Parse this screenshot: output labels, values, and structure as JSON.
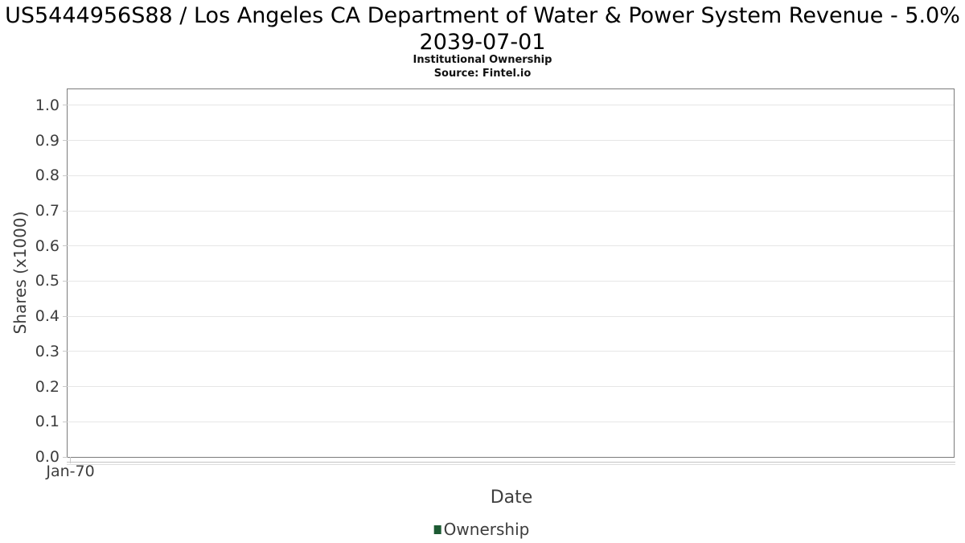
{
  "chart_data": {
    "type": "line",
    "title": "US5444956S88 / Los Angeles CA Department of Water & Power System Revenue - 5.0% 2039-07-01",
    "subtitle": "Institutional Ownership",
    "source": "Source: Fintel.io",
    "xlabel": "Date",
    "ylabel": "Shares (x1000)",
    "x_tick_labels": [
      "Jan-70"
    ],
    "y_tick_labels": [
      "0.0",
      "0.1",
      "0.2",
      "0.3",
      "0.4",
      "0.5",
      "0.6",
      "0.7",
      "0.8",
      "0.9",
      "1.0"
    ],
    "ylim": [
      0,
      1.05
    ],
    "grid": true,
    "legend_position": "bottom-center",
    "series": [
      {
        "name": "Ownership",
        "color": "#1d5a33",
        "x": [],
        "values": []
      }
    ]
  },
  "colors": {
    "series_green": "#1d5a33",
    "plot_border": "#7b7b7b",
    "gridline": "#e6e6e6",
    "tick": "#c8c8c8",
    "axis_text": "#3d3d3d",
    "title_text": "#000000"
  }
}
